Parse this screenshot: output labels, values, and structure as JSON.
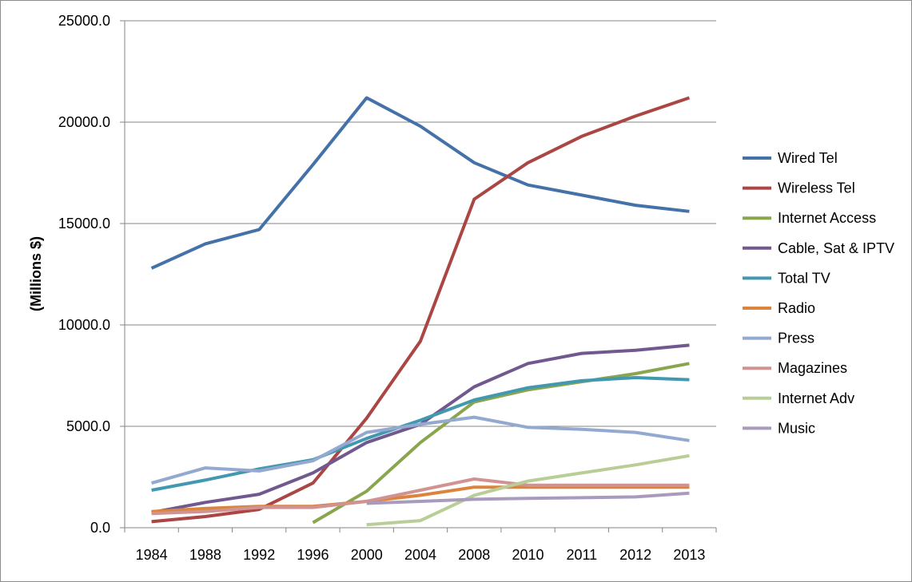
{
  "chart_data": {
    "type": "line",
    "title": "",
    "xlabel": "",
    "ylabel": "(Millions $)",
    "ylim": [
      0,
      25000
    ],
    "yticks": [
      "0.0",
      "5000.0",
      "10000.0",
      "15000.0",
      "20000.0",
      "25000.0"
    ],
    "ytick_values": [
      0,
      5000,
      10000,
      15000,
      20000,
      25000
    ],
    "grid": true,
    "legend_position": "right",
    "categories": [
      "1984",
      "1988",
      "1992",
      "1996",
      "2000",
      "2004",
      "2008",
      "2010",
      "2011",
      "2012",
      "2013"
    ],
    "series": [
      {
        "name": "Wired Tel",
        "color": "#4472A8",
        "values": [
          12800,
          14000,
          14700,
          17900,
          21200,
          19800,
          18000,
          16900,
          16400,
          15900,
          15600
        ]
      },
      {
        "name": "Wireless Tel",
        "color": "#AA4643",
        "values": [
          300,
          550,
          900,
          2200,
          5400,
          9200,
          16200,
          18000,
          19300,
          20300,
          21200
        ]
      },
      {
        "name": "Internet Access",
        "color": "#89A54E",
        "values": [
          null,
          null,
          null,
          250,
          1800,
          4200,
          6200,
          6800,
          7200,
          7600,
          8100
        ]
      },
      {
        "name": "Cable, Sat & IPTV",
        "color": "#71588F",
        "values": [
          750,
          1250,
          1650,
          2700,
          4200,
          5100,
          6950,
          8100,
          8600,
          8750,
          9000
        ]
      },
      {
        "name": "Total TV",
        "color": "#4198AF",
        "values": [
          1850,
          2350,
          2900,
          3350,
          4400,
          5300,
          6300,
          6900,
          7250,
          7400,
          7300
        ]
      },
      {
        "name": "Radio",
        "color": "#DB843D",
        "values": [
          800,
          950,
          1050,
          1050,
          1300,
          1600,
          2000,
          2000,
          2000,
          2000,
          2000
        ]
      },
      {
        "name": "Press",
        "color": "#93A9CF",
        "values": [
          2200,
          2950,
          2800,
          3300,
          4700,
          5100,
          5450,
          4950,
          4850,
          4700,
          4300
        ]
      },
      {
        "name": "Magazines",
        "color": "#D19392",
        "values": [
          700,
          800,
          1000,
          1000,
          1300,
          1850,
          2400,
          2100,
          2100,
          2100,
          2100
        ]
      },
      {
        "name": "Internet Adv",
        "color": "#B9CD96",
        "values": [
          null,
          null,
          null,
          null,
          150,
          350,
          1600,
          2300,
          2700,
          3100,
          3550
        ]
      },
      {
        "name": "Music",
        "color": "#A99BBD",
        "values": [
          null,
          null,
          null,
          null,
          1200,
          1300,
          1400,
          1450,
          1480,
          1520,
          1700
        ]
      }
    ]
  }
}
